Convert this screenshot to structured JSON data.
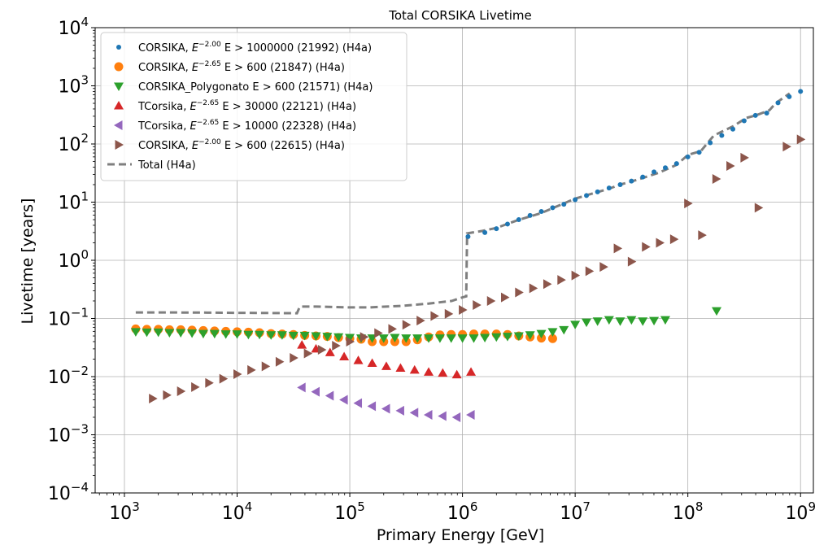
{
  "chart_data": {
    "type": "scatter",
    "title": "Total CORSIKA Livetime",
    "xlabel": "Primary Energy [GeV]",
    "ylabel": "Livetime [years]",
    "xscale": "log",
    "yscale": "log",
    "xlim": [
      550,
      1300000000
    ],
    "ylim": [
      0.0001,
      10000
    ],
    "grid": true,
    "legend_position": "top-left",
    "x_ticks": [
      {
        "base": "10",
        "exp": "3",
        "value": 1000
      },
      {
        "base": "10",
        "exp": "4",
        "value": 10000
      },
      {
        "base": "10",
        "exp": "5",
        "value": 100000
      },
      {
        "base": "10",
        "exp": "6",
        "value": 1000000
      },
      {
        "base": "10",
        "exp": "7",
        "value": 10000000
      },
      {
        "base": "10",
        "exp": "8",
        "value": 100000000
      },
      {
        "base": "10",
        "exp": "9",
        "value": 1000000000
      }
    ],
    "y_ticks": [
      {
        "base": "10",
        "exp": "−4",
        "value": 0.0001
      },
      {
        "base": "10",
        "exp": "−3",
        "value": 0.001
      },
      {
        "base": "10",
        "exp": "−2",
        "value": 0.01
      },
      {
        "base": "10",
        "exp": "−1",
        "value": 0.1
      },
      {
        "base": "10",
        "exp": "0",
        "value": 1
      },
      {
        "base": "10",
        "exp": "1",
        "value": 10
      },
      {
        "base": "10",
        "exp": "2",
        "value": 100
      },
      {
        "base": "10",
        "exp": "3",
        "value": 1000
      },
      {
        "base": "10",
        "exp": "4",
        "value": 10000
      }
    ],
    "series": [
      {
        "id": "s21992",
        "legend_pre": "CORSIKA, ",
        "legend_sup": "−2.00",
        "legend_post": " E > 1000000 (21992) (H4a)",
        "color": "#1f77b4",
        "marker": "point",
        "x": [
          1120000,
          1580000,
          2000000,
          2510000,
          3160000,
          3980000,
          5010000,
          6310000,
          7940000,
          10000000,
          12600000,
          15800000,
          20000000,
          25100000,
          31600000,
          39800000,
          50100000,
          63100000,
          79400000,
          100000000,
          126000000,
          158000000,
          200000000,
          251000000,
          316000000,
          398000000,
          501000000,
          631000000,
          794000000,
          1000000000
        ],
        "y": [
          2.55,
          3.0,
          3.5,
          4.2,
          5.0,
          5.9,
          6.9,
          8.0,
          9.2,
          11.0,
          13.0,
          15.0,
          17.5,
          20.0,
          23.0,
          27.0,
          33.0,
          39.0,
          46.0,
          60.0,
          72.0,
          105.0,
          140.0,
          180.0,
          250.0,
          310.0,
          340.0,
          510.0,
          650.0,
          800.0
        ]
      },
      {
        "id": "s21847",
        "legend_pre": "CORSIKA, ",
        "legend_sup": "−2.65",
        "legend_post": " E > 600 (21847) (H4a)",
        "color": "#ff7f0e",
        "marker": "circle",
        "x": [
          1260,
          1580,
          2000,
          2510,
          3160,
          3980,
          5010,
          6310,
          7940,
          10000,
          12600,
          15800,
          20000,
          25100,
          31600,
          39800,
          50100,
          63100,
          79400,
          100000,
          126000,
          158000,
          200000,
          251000,
          316000,
          398000,
          501000,
          631000,
          794000,
          1000000,
          1260000,
          1580000,
          2000000,
          2510000,
          3160000,
          3980000,
          5010000,
          6310000
        ],
        "y": [
          0.066,
          0.065,
          0.065,
          0.064,
          0.064,
          0.063,
          0.062,
          0.061,
          0.06,
          0.059,
          0.058,
          0.057,
          0.055,
          0.054,
          0.053,
          0.051,
          0.05,
          0.049,
          0.047,
          0.045,
          0.044,
          0.04,
          0.04,
          0.04,
          0.04,
          0.043,
          0.048,
          0.052,
          0.053,
          0.053,
          0.054,
          0.054,
          0.054,
          0.053,
          0.05,
          0.048,
          0.046,
          0.045
        ]
      },
      {
        "id": "s21571",
        "legend_pre": "CORSIKA_Polygonato ",
        "legend_sup": "",
        "legend_post": "E > 600 (21571) (H4a)",
        "color": "#2ca02c",
        "marker": "triangle-down",
        "x": [
          1260,
          1580,
          2000,
          2510,
          3160,
          3980,
          5010,
          6310,
          7940,
          10000,
          12600,
          15800,
          20000,
          25100,
          31600,
          39800,
          50100,
          63100,
          79400,
          100000,
          126000,
          158000,
          200000,
          251000,
          316000,
          398000,
          501000,
          631000,
          794000,
          1000000,
          1260000,
          1580000,
          2000000,
          2510000,
          3160000,
          3980000,
          5010000,
          6310000,
          7940000,
          10000000,
          12600000,
          15800000,
          20000000,
          25100000,
          31600000,
          39800000,
          50100000,
          63100000,
          180000000
        ],
        "y": [
          0.059,
          0.058,
          0.058,
          0.057,
          0.057,
          0.056,
          0.055,
          0.055,
          0.054,
          0.054,
          0.053,
          0.053,
          0.052,
          0.052,
          0.051,
          0.051,
          0.05,
          0.049,
          0.048,
          0.047,
          0.046,
          0.046,
          0.046,
          0.047,
          0.046,
          0.046,
          0.046,
          0.046,
          0.046,
          0.046,
          0.046,
          0.047,
          0.048,
          0.049,
          0.05,
          0.052,
          0.055,
          0.059,
          0.064,
          0.079,
          0.086,
          0.09,
          0.095,
          0.09,
          0.095,
          0.09,
          0.092,
          0.095,
          0.135
        ]
      },
      {
        "id": "s22121",
        "legend_pre": "TCorsika, ",
        "legend_sup": "−2.65",
        "legend_post": " E > 30000 (22121) (H4a)",
        "color": "#d62728",
        "marker": "triangle-up",
        "x": [
          37600,
          50100,
          66800,
          89100,
          119000,
          158000,
          211000,
          282000,
          376000,
          501000,
          668000,
          891000,
          1190000
        ],
        "y": [
          0.035,
          0.03,
          0.026,
          0.022,
          0.019,
          0.017,
          0.015,
          0.014,
          0.013,
          0.012,
          0.0115,
          0.0108,
          0.012
        ]
      },
      {
        "id": "s22328",
        "legend_pre": "TCorsika, ",
        "legend_sup": "−2.65",
        "legend_post": " E > 10000 (22328) (H4a)",
        "color": "#9467bd",
        "marker": "triangle-left",
        "x": [
          37600,
          50100,
          66800,
          89100,
          119000,
          158000,
          211000,
          282000,
          376000,
          501000,
          668000,
          891000,
          1190000
        ],
        "y": [
          0.0065,
          0.0055,
          0.0047,
          0.004,
          0.0035,
          0.0031,
          0.0028,
          0.0026,
          0.0024,
          0.0022,
          0.0021,
          0.002,
          0.0022
        ]
      },
      {
        "id": "s22615",
        "legend_pre": "CORSIKA, ",
        "legend_sup": "−2.00",
        "legend_post": " E > 600 (22615) (H4a)",
        "color": "#8c564b",
        "marker": "triangle-right",
        "x": [
          1780,
          2370,
          3160,
          4220,
          5620,
          7500,
          10000,
          13300,
          17800,
          23700,
          31600,
          42200,
          56200,
          75000,
          100000,
          133000,
          178000,
          237000,
          316000,
          422000,
          562000,
          750000,
          1000000,
          1330000,
          1780000,
          2370000,
          3160000,
          4220000,
          5620000,
          7500000,
          10000000,
          13300000,
          17800000,
          23700000,
          31600000,
          42200000,
          56200000,
          75000000,
          100000000,
          133000000,
          178000000,
          237000000,
          316000000,
          422000000,
          750000000,
          1000000000
        ],
        "y": [
          0.0042,
          0.0048,
          0.0056,
          0.0066,
          0.0078,
          0.0092,
          0.011,
          0.013,
          0.015,
          0.018,
          0.021,
          0.025,
          0.029,
          0.034,
          0.04,
          0.048,
          0.056,
          0.066,
          0.078,
          0.092,
          0.11,
          0.12,
          0.14,
          0.17,
          0.2,
          0.23,
          0.28,
          0.33,
          0.39,
          0.46,
          0.55,
          0.65,
          0.77,
          1.6,
          0.95,
          1.7,
          2.0,
          2.3,
          9.5,
          2.7,
          25.0,
          42.0,
          58.0,
          8.0,
          90.0,
          120.0
        ]
      }
    ],
    "total": {
      "id": "total",
      "legend": "Total (H4a)",
      "color": "#7f7f7f",
      "style": "dashed",
      "x": [
        1260,
        2000,
        5000,
        10000,
        20000,
        34000,
        36000,
        50000,
        100000,
        150000,
        300000,
        500000,
        800000,
        1000000,
        1080000,
        1100000,
        1500000,
        2000000,
        3000000,
        5000000,
        10000000,
        15000000,
        20000000,
        25000000,
        35000000,
        55000000,
        80000000,
        100000000,
        130000000,
        170000000,
        250000000,
        330000000,
        400000000,
        530000000,
        600000000,
        800000000
      ],
      "y": [
        0.127,
        0.127,
        0.126,
        0.125,
        0.124,
        0.123,
        0.16,
        0.16,
        0.155,
        0.155,
        0.165,
        0.18,
        0.2,
        0.23,
        0.24,
        2.9,
        3.2,
        3.6,
        4.8,
        6.5,
        11.5,
        14.5,
        17.0,
        20.0,
        24.0,
        32.0,
        44.0,
        65.0,
        75.0,
        140.0,
        200.0,
        280.0,
        310.0,
        380.0,
        500.0,
        740.0
      ]
    }
  }
}
